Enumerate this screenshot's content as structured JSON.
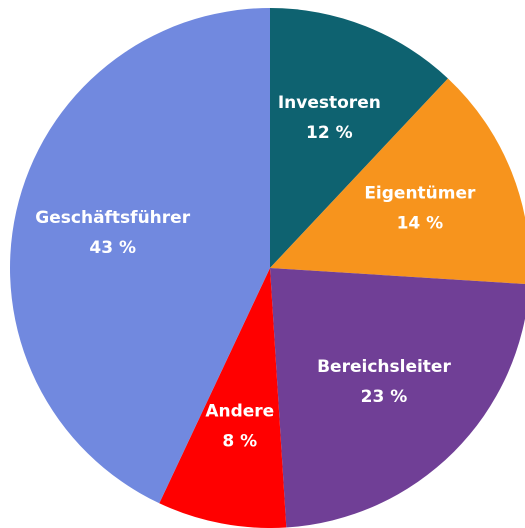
{
  "chart_data": {
    "type": "pie",
    "categories": [
      "Investoren",
      "Eigentümer",
      "Bereichsleiter",
      "Andere",
      "Geschäftsführer"
    ],
    "values": [
      12,
      14,
      23,
      8,
      43
    ],
    "value_labels": [
      "12 %",
      "14 %",
      "23 %",
      "8 %",
      "43 %"
    ],
    "colors": [
      "#0e6270",
      "#f7941d",
      "#703f96",
      "#ff0000",
      "#7189df"
    ]
  }
}
